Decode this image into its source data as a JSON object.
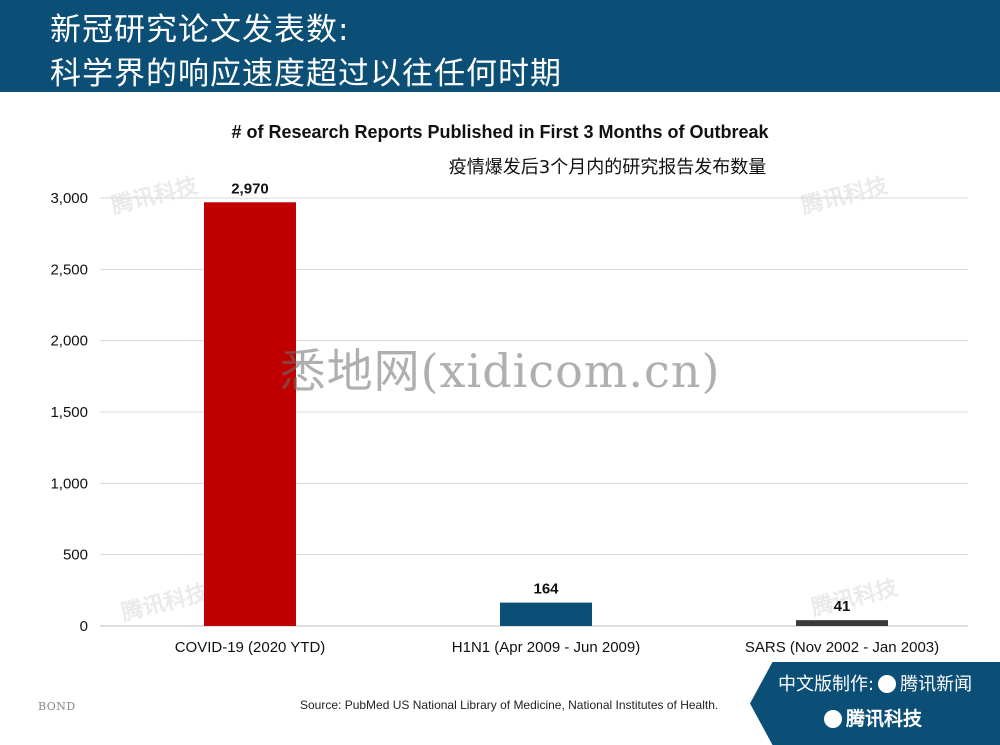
{
  "header": {
    "line1": "新冠研究论文发表数:",
    "line2": "科学界的响应速度超过以往任何时期"
  },
  "chart_data": {
    "type": "bar",
    "title": "# of Research Reports Published in First 3 Months of Outbreak",
    "subtitle": "疫情爆发后3个月内的研究报告发布数量",
    "categories": [
      "COVID-19 (2020 YTD)",
      "H1N1 (Apr 2009 - Jun 2009)",
      "SARS (Nov 2002 - Jan 2003)"
    ],
    "values": [
      2970,
      164,
      41
    ],
    "value_labels": [
      "2,970",
      "164",
      "41"
    ],
    "bar_colors": [
      "#c00000",
      "#0b4e76",
      "#3a3a3a"
    ],
    "ylim": [
      0,
      3000
    ],
    "yticks": [
      0,
      500,
      1000,
      1500,
      2000,
      2500,
      3000
    ],
    "ytick_labels": [
      "0",
      "500",
      "1,000",
      "1,500",
      "2,000",
      "2,500",
      "3,000"
    ],
    "grid": true
  },
  "watermark": "悉地网(xidicom.cn)",
  "brand_left": "BOND",
  "source": "Source: PubMed US National Library of Medicine, National Institutes of Health.",
  "footer": {
    "made_by": "中文版制作:",
    "brand1": "腾讯新闻",
    "brand2": "腾讯科技"
  },
  "faint_watermark": "腾讯科技",
  "colors": {
    "header_bg": "#0b4e76",
    "grid": "#d9d9d9"
  }
}
